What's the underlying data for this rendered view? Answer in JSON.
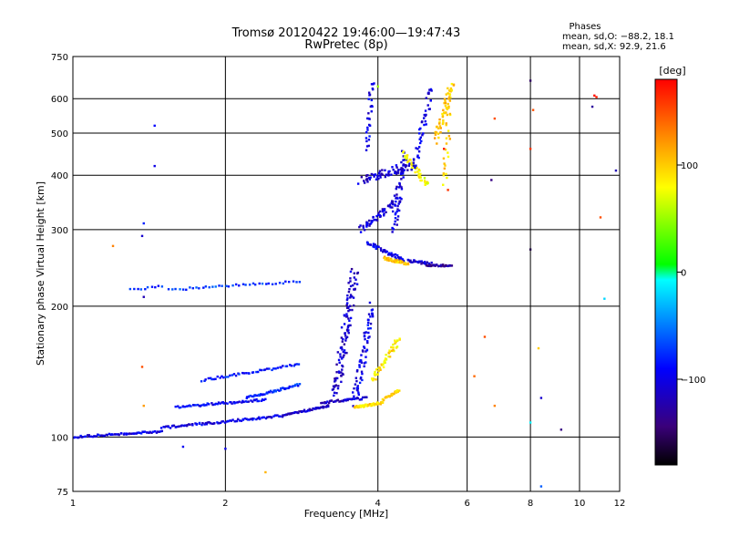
{
  "chart_data": {
    "type": "scatter",
    "title": "Tromsø 20120422 19:46:00—19:47:43",
    "subtitle": "RwPretec (8p)",
    "xlabel": "Frequency [MHz]",
    "ylabel": "Stationary phase Virtual Height [km]",
    "x_scale": "log",
    "y_scale": "log",
    "xlim": [
      1,
      12
    ],
    "ylim": [
      75,
      750
    ],
    "x_ticks": [
      "1",
      "2",
      "4",
      "6",
      "8",
      "10",
      "12"
    ],
    "y_ticks": [
      "75",
      "100",
      "200",
      "300",
      "400",
      "500",
      "600",
      "750"
    ],
    "grid": true,
    "phases": {
      "title": "Phases",
      "line_o": "mean, sd,O: −88.2, 18.1",
      "line_x": "mean, sd,X:  92.9, 21.6"
    },
    "colorbar": {
      "label": "[deg]",
      "range": [
        -180,
        180
      ],
      "ticks": [
        "100",
        "0",
        "−100"
      ]
    },
    "traces": [
      {
        "from": [
          1.0,
          100
        ],
        "to": [
          1.5,
          103
        ],
        "n": 70,
        "spread": 0.01,
        "phase": -100
      },
      {
        "from": [
          1.5,
          105
        ],
        "to": [
          2.6,
          112
        ],
        "n": 90,
        "spread": 0.012,
        "phase": -100
      },
      {
        "from": [
          1.6,
          117
        ],
        "to": [
          2.4,
          122
        ],
        "n": 60,
        "spread": 0.012,
        "phase": -95
      },
      {
        "from": [
          2.2,
          123
        ],
        "to": [
          2.8,
          132
        ],
        "n": 50,
        "spread": 0.012,
        "phase": -80
      },
      {
        "from": [
          1.8,
          135
        ],
        "to": [
          2.8,
          147
        ],
        "n": 50,
        "spread": 0.012,
        "phase": -85
      },
      {
        "from": [
          2.6,
          112
        ],
        "to": [
          3.2,
          118
        ],
        "n": 45,
        "spread": 0.01,
        "phase": -110
      },
      {
        "from": [
          3.1,
          120
        ],
        "to": [
          3.8,
          123
        ],
        "n": 40,
        "spread": 0.012,
        "phase": -115
      },
      {
        "from": [
          3.3,
          125
        ],
        "to": [
          3.6,
          240
        ],
        "n": 110,
        "spread": 0.06,
        "phase": -112
      },
      {
        "from": [
          3.6,
          120
        ],
        "to": [
          3.9,
          200
        ],
        "n": 70,
        "spread": 0.05,
        "phase": -100
      },
      {
        "from": [
          3.6,
          117
        ],
        "to": [
          4.1,
          120
        ],
        "n": 50,
        "spread": 0.012,
        "phase": 95
      },
      {
        "from": [
          3.9,
          135
        ],
        "to": [
          4.4,
          168
        ],
        "n": 50,
        "spread": 0.03,
        "phase": 90
      },
      {
        "from": [
          4.1,
          122
        ],
        "to": [
          4.4,
          128
        ],
        "n": 25,
        "spread": 0.015,
        "phase": 100
      },
      {
        "from": [
          3.8,
          280
        ],
        "to": [
          4.5,
          255
        ],
        "n": 50,
        "spread": 0.02,
        "phase": -95
      },
      {
        "from": [
          4.1,
          258
        ],
        "to": [
          4.6,
          250
        ],
        "n": 40,
        "spread": 0.015,
        "phase": 100
      },
      {
        "from": [
          4.6,
          255
        ],
        "to": [
          5.1,
          250
        ],
        "n": 30,
        "spread": 0.015,
        "phase": -110
      },
      {
        "from": [
          5.0,
          248
        ],
        "to": [
          5.6,
          248
        ],
        "n": 30,
        "spread": 0.01,
        "phase": -130
      },
      {
        "from": [
          3.7,
          300
        ],
        "to": [
          4.4,
          350
        ],
        "n": 60,
        "spread": 0.04,
        "phase": -105
      },
      {
        "from": [
          3.7,
          390
        ],
        "to": [
          4.6,
          420
        ],
        "n": 60,
        "spread": 0.04,
        "phase": -110
      },
      {
        "from": [
          4.3,
          300
        ],
        "to": [
          4.5,
          450
        ],
        "n": 50,
        "spread": 0.05,
        "phase": -105
      },
      {
        "from": [
          3.8,
          460
        ],
        "to": [
          3.9,
          660
        ],
        "n": 30,
        "spread": 0.03,
        "phase": -100
      },
      {
        "from": [
          4.5,
          450
        ],
        "to": [
          5.0,
          380
        ],
        "n": 45,
        "spread": 0.03,
        "phase": 80
      },
      {
        "from": [
          4.7,
          410
        ],
        "to": [
          5.1,
          640
        ],
        "n": 45,
        "spread": 0.04,
        "phase": -100
      },
      {
        "from": [
          5.2,
          480
        ],
        "to": [
          5.6,
          650
        ],
        "n": 50,
        "spread": 0.04,
        "phase": 100
      },
      {
        "from": [
          5.4,
          380
        ],
        "to": [
          5.6,
          650
        ],
        "n": 30,
        "spread": 0.04,
        "phase": 95
      },
      {
        "from": [
          1.55,
          218
        ],
        "to": [
          2.8,
          228
        ],
        "n": 40,
        "spread": 0.012,
        "phase": -70
      },
      {
        "from": [
          1.3,
          218
        ],
        "to": [
          1.5,
          222
        ],
        "n": 10,
        "spread": 0.01,
        "phase": -80
      }
    ],
    "isolated_points": [
      {
        "x": 1.45,
        "y": 520,
        "phase": -90
      },
      {
        "x": 1.45,
        "y": 420,
        "phase": -100
      },
      {
        "x": 1.38,
        "y": 310,
        "phase": -80
      },
      {
        "x": 1.37,
        "y": 290,
        "phase": -110
      },
      {
        "x": 1.38,
        "y": 210,
        "phase": -120
      },
      {
        "x": 1.2,
        "y": 275,
        "phase": 130
      },
      {
        "x": 1.37,
        "y": 145,
        "phase": 150
      },
      {
        "x": 1.38,
        "y": 118,
        "phase": 120
      },
      {
        "x": 2.4,
        "y": 83,
        "phase": 110
      },
      {
        "x": 1.65,
        "y": 95,
        "phase": -95
      },
      {
        "x": 2.0,
        "y": 94,
        "phase": -100
      },
      {
        "x": 6.8,
        "y": 540,
        "phase": 150
      },
      {
        "x": 6.7,
        "y": 390,
        "phase": -140
      },
      {
        "x": 6.5,
        "y": 170,
        "phase": 150
      },
      {
        "x": 6.8,
        "y": 118,
        "phase": 130
      },
      {
        "x": 6.2,
        "y": 138,
        "phase": 140
      },
      {
        "x": 8.0,
        "y": 660,
        "phase": -150
      },
      {
        "x": 8.0,
        "y": 460,
        "phase": 160
      },
      {
        "x": 8.0,
        "y": 270,
        "phase": -160
      },
      {
        "x": 8.1,
        "y": 565,
        "phase": 150
      },
      {
        "x": 8.3,
        "y": 160,
        "phase": 100
      },
      {
        "x": 8.4,
        "y": 123,
        "phase": -110
      },
      {
        "x": 8.0,
        "y": 108,
        "phase": -10
      },
      {
        "x": 8.4,
        "y": 77,
        "phase": -60
      },
      {
        "x": 9.2,
        "y": 104,
        "phase": -140
      },
      {
        "x": 10.7,
        "y": 610,
        "phase": 175
      },
      {
        "x": 10.8,
        "y": 605,
        "phase": 170
      },
      {
        "x": 10.6,
        "y": 575,
        "phase": -130
      },
      {
        "x": 11.0,
        "y": 320,
        "phase": 150
      },
      {
        "x": 11.2,
        "y": 208,
        "phase": -20
      },
      {
        "x": 11.8,
        "y": 410,
        "phase": -120
      },
      {
        "x": 5.4,
        "y": 460,
        "phase": 170
      },
      {
        "x": 5.5,
        "y": 370,
        "phase": 160
      },
      {
        "x": 4.0,
        "y": 640,
        "phase": 50
      }
    ]
  }
}
